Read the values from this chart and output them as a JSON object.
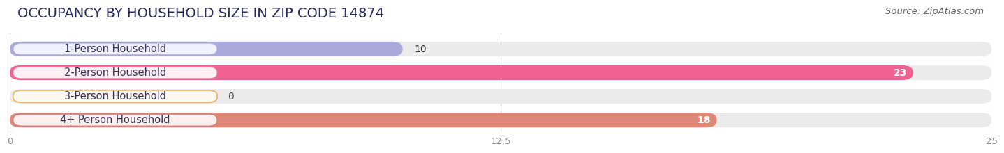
{
  "title": "OCCUPANCY BY HOUSEHOLD SIZE IN ZIP CODE 14874",
  "source": "Source: ZipAtlas.com",
  "categories": [
    "1-Person Household",
    "2-Person Household",
    "3-Person Household",
    "4+ Person Household"
  ],
  "values": [
    10,
    23,
    0,
    18
  ],
  "bar_colors": [
    "#aaaadd",
    "#f06090",
    "#f5c87a",
    "#e08878"
  ],
  "label_bg_colors": [
    "#f0f0ff",
    "#fff0f5",
    "#fff8ee",
    "#fff0ee"
  ],
  "label_border_colors": [
    "#aaaacc",
    "#e878a0",
    "#e8b060",
    "#d08080"
  ],
  "xlim": [
    0,
    25
  ],
  "xticks": [
    0,
    12.5,
    25
  ],
  "background_color": "#ffffff",
  "bar_bg_color": "#ebebeb",
  "title_fontsize": 14,
  "label_fontsize": 10.5,
  "value_fontsize": 10,
  "source_fontsize": 9.5,
  "title_color": "#2a2a5a",
  "source_color": "#666666",
  "tick_color": "#888888"
}
